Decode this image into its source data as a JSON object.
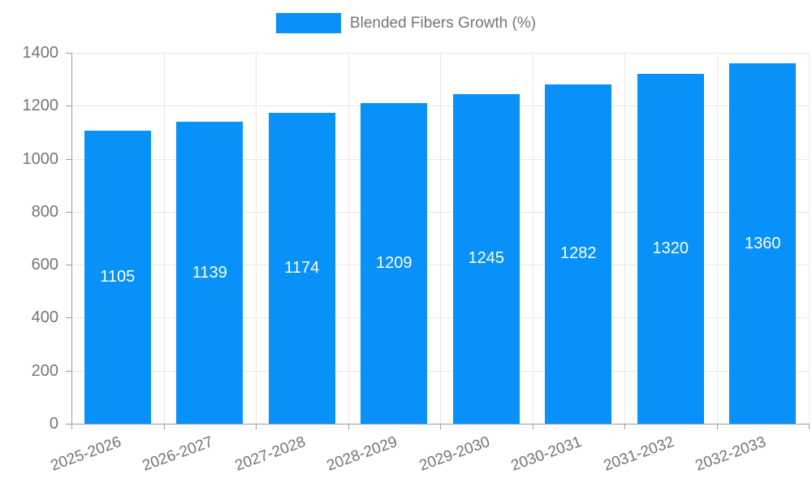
{
  "chart_data": {
    "type": "bar",
    "title": "Blended Fibers Growth (%)",
    "legend": {
      "position": "top",
      "label": "Blended Fibers Growth (%)"
    },
    "categories": [
      "2025-2026",
      "2026-2027",
      "2027-2028",
      "2028-2029",
      "2029-2030",
      "2030-2031",
      "2031-2032",
      "2032-2033"
    ],
    "values": [
      1105,
      1139,
      1174,
      1209,
      1245,
      1282,
      1320,
      1360
    ],
    "value_labels": [
      "1105",
      "1139",
      "1174",
      "1209",
      "1245",
      "1282",
      "1320",
      "1360"
    ],
    "xlabel": "",
    "ylabel": "",
    "ylim": [
      0,
      1400
    ],
    "yticks": [
      0,
      200,
      400,
      600,
      800,
      1000,
      1200,
      1400
    ],
    "grid": true
  },
  "colors": {
    "bar": "#0891f8",
    "grid": "#e8e8e8",
    "axis": "#9e9e9e",
    "tick_text": "#757575",
    "value_text": "#ffffff",
    "background": "#ffffff"
  }
}
